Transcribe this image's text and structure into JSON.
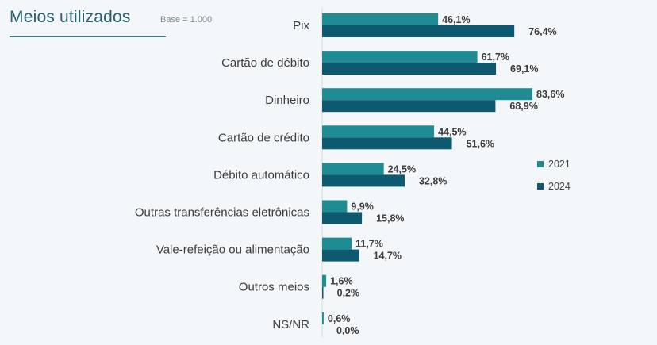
{
  "header": {
    "title": "Meios utilizados",
    "base": "Base = 1.000"
  },
  "colors": {
    "2021": "#1f8c94",
    "2024": "#0d5a70",
    "background": "#f3f7f9"
  },
  "chart_data": {
    "type": "bar",
    "orientation": "horizontal",
    "categories": [
      "Pix",
      "Cartão de débito",
      "Dinheiro",
      "Cartão de crédito",
      "Débito automático",
      "Outras transferências eletrônicas",
      "Vale-refeição ou alimentação",
      "Outros meios",
      "NS/NR"
    ],
    "series": [
      {
        "name": "2021",
        "values": [
          46.1,
          61.7,
          83.6,
          44.5,
          24.5,
          9.9,
          11.7,
          1.6,
          0.6
        ],
        "labels": [
          "46,1%",
          "61,7%",
          "83,6%",
          "44,5%",
          "24,5%",
          "9,9%",
          "11,7%",
          "1,6%",
          "0,6%"
        ]
      },
      {
        "name": "2024",
        "values": [
          76.4,
          69.1,
          68.9,
          51.6,
          32.8,
          15.8,
          14.7,
          0.2,
          0.0
        ],
        "labels": [
          "76,4%",
          "69,1%",
          "68,9%",
          "51,6%",
          "32,8%",
          "15,8%",
          "14,7%",
          "0,2%",
          "0,0%"
        ]
      }
    ],
    "xlim": [
      0,
      100
    ],
    "grid": false,
    "legend_position": "right"
  }
}
